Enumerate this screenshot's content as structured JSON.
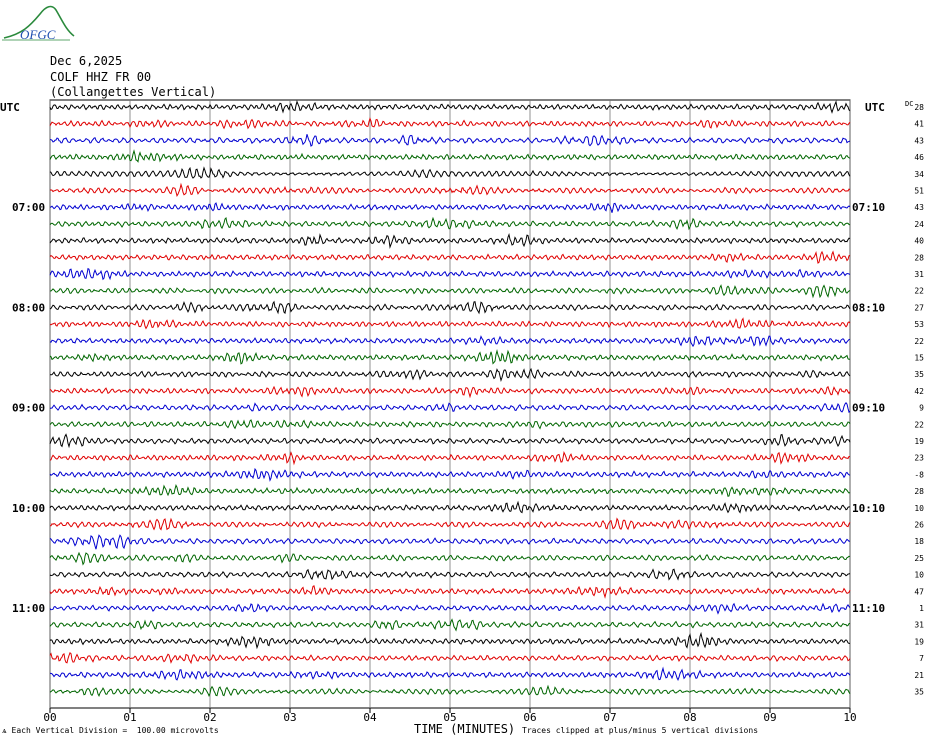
{
  "logo": {
    "text": "OFGC",
    "colors": {
      "hill": "#2a8a3c",
      "text": "#1f4fb0"
    }
  },
  "header": {
    "date": "Dec 6,2025",
    "station": "COLF HHZ FR 00",
    "description": "(Collangettes Vertical)"
  },
  "left_axis_label": "UTC",
  "right_axis_label": "UTC",
  "dc_label": "DC",
  "left_time_labels": [
    "07:00",
    "08:00",
    "09:00",
    "10:00",
    "11:00"
  ],
  "right_time_labels": [
    "07:10",
    "08:10",
    "09:10",
    "10:10",
    "11:10"
  ],
  "x_axis": {
    "title": "TIME (MINUTES)",
    "ticks": [
      "00",
      "01",
      "02",
      "03",
      "04",
      "05",
      "06",
      "07",
      "08",
      "09",
      "10"
    ]
  },
  "footer": {
    "left": "Each Vertical Division =  100.00 microvolts",
    "right": "Traces clipped at plus/minus 5 vertical divisions"
  },
  "trace_colors": [
    "#000000",
    "#e00000",
    "#0000d0",
    "#006600"
  ],
  "chart_data": {
    "type": "line",
    "title": "",
    "xlabel": "TIME (MINUTES)",
    "ylabel": "",
    "xlim": [
      0,
      10
    ],
    "x_ticks": [
      "00",
      "01",
      "02",
      "03",
      "04",
      "05",
      "06",
      "07",
      "08",
      "09",
      "10"
    ],
    "trace_count": 36,
    "dc_offsets": [
      28,
      41,
      43,
      46,
      34,
      51,
      43,
      24,
      40,
      28,
      31,
      22,
      27,
      53,
      22,
      15,
      35,
      42,
      9,
      22,
      19,
      23,
      -8,
      28,
      10,
      26,
      18,
      25,
      10,
      47,
      1,
      31,
      19,
      7,
      21,
      35
    ]
  }
}
